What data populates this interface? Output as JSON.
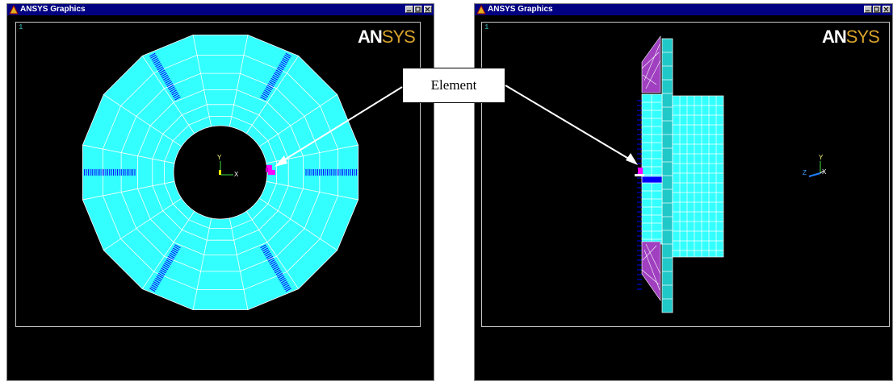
{
  "windows": [
    {
      "title": "ANSYS Graphics",
      "viewport_number": "1",
      "logo_part1": "AN",
      "logo_part2": "SYS"
    },
    {
      "title": "ANSYS Graphics",
      "viewport_number": "1",
      "logo_part1": "AN",
      "logo_part2": "SYS"
    }
  ],
  "triads": {
    "left": {
      "y": "Y",
      "x": "X"
    },
    "right": {
      "y": "Y",
      "z": "Z",
      "x": "X"
    }
  },
  "callout": {
    "label": "Element"
  },
  "colors": {
    "mesh": "#33ffff",
    "edges": "#ffffff",
    "constraint": "#0000ff",
    "element": "#ff00ff",
    "titlebar": "#000080"
  }
}
